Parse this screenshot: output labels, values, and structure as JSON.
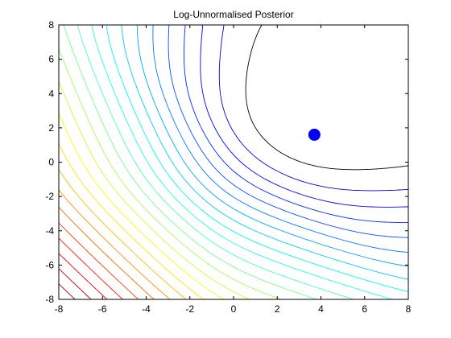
{
  "chart_data": {
    "type": "contour",
    "title": "Log-Unnormalised Posterior",
    "xlabel": "",
    "ylabel": "",
    "xlim": [
      -8,
      8
    ],
    "ylim": [
      -8,
      8
    ],
    "x_ticks": [
      "-8",
      "-6",
      "-4",
      "-2",
      "0",
      "2",
      "4",
      "6",
      "8"
    ],
    "y_ticks": [
      "-8",
      "-6",
      "-4",
      "-2",
      "0",
      "2",
      "4",
      "6",
      "8"
    ],
    "grid": false,
    "colormap": "jet",
    "contour_levels": 24,
    "mode": {
      "x": 3.7,
      "y": 1.6,
      "color": "#0000ff"
    }
  }
}
